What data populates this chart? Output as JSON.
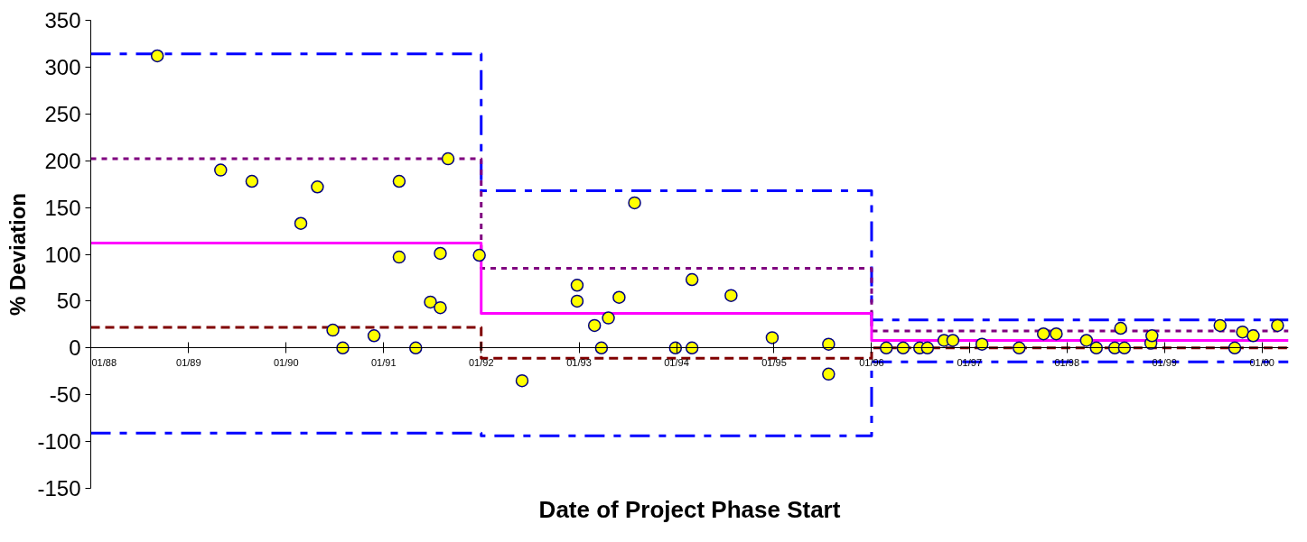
{
  "chart_data": {
    "type": "scatter",
    "xlabel": "Date of Project Phase Start",
    "ylabel": "% Deviation",
    "xlim": [
      "1988-01-01",
      "2000-04-09"
    ],
    "xticks": [
      {
        "value": "1988-01-01",
        "label": "01/88"
      },
      {
        "value": "1989-01-01",
        "label": "01/89"
      },
      {
        "value": "1990-01-01",
        "label": "01/90"
      },
      {
        "value": "1991-01-01",
        "label": "01/91"
      },
      {
        "value": "1992-01-01",
        "label": "01/92"
      },
      {
        "value": "1993-01-01",
        "label": "01/93"
      },
      {
        "value": "1994-01-01",
        "label": "01/94"
      },
      {
        "value": "1995-01-01",
        "label": "01/95"
      },
      {
        "value": "1996-01-01",
        "label": "01/96"
      },
      {
        "value": "1997-01-01",
        "label": "01/97"
      },
      {
        "value": "1998-01-01",
        "label": "01/98"
      },
      {
        "value": "1999-01-01",
        "label": "01/99"
      },
      {
        "value": "2000-01-01",
        "label": "01/00"
      }
    ],
    "ylim": [
      -150,
      350
    ],
    "yticks": [
      -150,
      -100,
      -50,
      0,
      50,
      100,
      150,
      200,
      250,
      300,
      350
    ],
    "series": [
      {
        "type": "step",
        "color": "#0000ff",
        "line_style": "dashdot",
        "x": [
          "1988-01-01",
          "1992-01-01",
          "1996-01-01",
          "2000-04-09"
        ],
        "values": [
          314,
          168,
          30,
          30
        ]
      },
      {
        "type": "step",
        "color": "#0000ff",
        "line_style": "dashdot",
        "x": [
          "1988-01-01",
          "1992-01-01",
          "1996-01-01",
          "2000-04-09"
        ],
        "values": [
          -91,
          -94,
          -15,
          -15
        ]
      },
      {
        "type": "step",
        "color": "#800080",
        "line_style": "dotted",
        "x": [
          "1988-01-01",
          "1992-01-01",
          "1996-01-01",
          "2000-04-09"
        ],
        "values": [
          202,
          85,
          18,
          18
        ]
      },
      {
        "type": "step",
        "color": "#800000",
        "line_style": "dashed",
        "x": [
          "1988-01-01",
          "1992-01-01",
          "1996-01-01",
          "2000-04-09"
        ],
        "values": [
          22,
          -11,
          0,
          0
        ]
      },
      {
        "type": "step",
        "color": "#ff00ff",
        "line_style": "solid",
        "x": [
          "1988-01-01",
          "1992-01-01",
          "1996-01-01",
          "2000-04-09"
        ],
        "values": [
          112,
          37,
          8,
          8
        ]
      },
      {
        "color": "#ffff00",
        "marker": "circle",
        "x": [
          "1988-09-06",
          "1989-05-01",
          "1989-08-26",
          "1990-04-28",
          "1990-02-25",
          "1991-02-28",
          "1991-08-30",
          "1991-02-28",
          "1991-08-01",
          "1991-12-25",
          "1991-06-25",
          "1991-08-01",
          "1990-06-25",
          "1990-08-01",
          "1990-11-26",
          "1991-05-01",
          "1992-06-02",
          "1993-07-28",
          "1992-12-25",
          "1992-12-25",
          "1993-05-31",
          "1993-04-21",
          "1993-02-28",
          "1993-03-26",
          "1993-12-28",
          "1994-02-28",
          "1994-02-28",
          "1994-07-24",
          "1994-12-25",
          "1995-07-24",
          "1995-07-24",
          "1996-02-25",
          "1996-04-28",
          "1996-06-29",
          "1996-07-28",
          "1996-09-28",
          "1996-10-31",
          "1997-02-17",
          "1997-07-06",
          "1997-10-05",
          "1997-11-22",
          "1998-03-15",
          "1998-04-21",
          "1998-06-29",
          "1998-08-04",
          "1998-07-21",
          "1998-11-11",
          "1998-11-15",
          "1999-07-28",
          "1999-09-21",
          "1999-10-20",
          "1999-11-29",
          "2000-02-28"
        ],
        "values": [
          312,
          190,
          178,
          172,
          133,
          178,
          202,
          97,
          101,
          99,
          49,
          43,
          19,
          0,
          13,
          0,
          -35,
          155,
          67,
          50,
          54,
          32,
          24,
          0,
          0,
          0,
          73,
          56,
          11,
          4,
          -28,
          0,
          0,
          0,
          0,
          8,
          8,
          4,
          0,
          15,
          15,
          8,
          0,
          0,
          0,
          21,
          5,
          13,
          24,
          0,
          17,
          13,
          24
        ]
      }
    ]
  }
}
